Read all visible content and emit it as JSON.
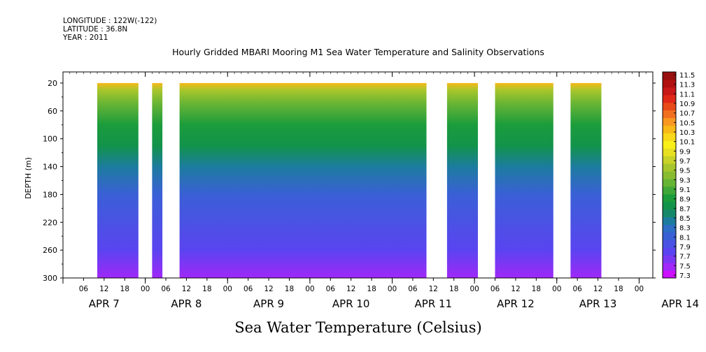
{
  "header": {
    "longitude": "LONGITUDE : 122W(-122)",
    "latitude": "LATITUDE : 36.8N",
    "year": "YEAR : 2011"
  },
  "chart_data": {
    "type": "heatmap",
    "title": "Hourly Gridded MBARI Mooring M1 Sea Water Temperature and Salinity Observations",
    "xlabel": "",
    "ylabel": "DEPTH (m)",
    "colorbar_label": "Sea Water Temperature (Celsius)",
    "ylim": [
      300,
      0
    ],
    "y_ticks": [
      20,
      60,
      100,
      140,
      180,
      220,
      260,
      300
    ],
    "x_hour_ticks": [
      "06",
      "12",
      "18",
      "00",
      "06",
      "12",
      "18",
      "00",
      "06",
      "12",
      "18",
      "00",
      "06",
      "12",
      "18",
      "00",
      "06",
      "12",
      "18",
      "00",
      "06",
      "12",
      "18",
      "00",
      "06",
      "12",
      "18",
      "00"
    ],
    "x_hour_ticks_start_hour": 6,
    "x_hour_ticks_step": 6,
    "x_start": "APR 7 00:00",
    "x_end": "APR 14 04:00",
    "day_labels": [
      {
        "label": "APR  7",
        "day": 0
      },
      {
        "label": "APR  8",
        "day": 1
      },
      {
        "label": "APR  9",
        "day": 2
      },
      {
        "label": "APR 10",
        "day": 3
      },
      {
        "label": "APR 11",
        "day": 4
      },
      {
        "label": "APR 12",
        "day": 5
      },
      {
        "label": "APR 13",
        "day": 6
      },
      {
        "label": "APR 14",
        "day": 7
      }
    ],
    "data_segments_hours": [
      [
        10,
        22
      ],
      [
        26,
        29
      ],
      [
        34,
        106
      ],
      [
        112,
        121
      ],
      [
        126,
        143
      ],
      [
        148,
        157
      ]
    ],
    "data_depth_range": [
      20,
      300
    ],
    "depth_profile": [
      {
        "depth": 20,
        "temp": 10.3
      },
      {
        "depth": 30,
        "temp": 9.6
      },
      {
        "depth": 50,
        "temp": 9.2
      },
      {
        "depth": 80,
        "temp": 9.0
      },
      {
        "depth": 110,
        "temp": 8.75
      },
      {
        "depth": 140,
        "temp": 8.4
      },
      {
        "depth": 180,
        "temp": 8.1
      },
      {
        "depth": 220,
        "temp": 7.95
      },
      {
        "depth": 260,
        "temp": 7.8
      },
      {
        "depth": 300,
        "temp": 7.5
      }
    ],
    "colorbar_levels": [
      "7.3",
      "7.5",
      "7.7",
      "7.9",
      "8.1",
      "8.3",
      "8.5",
      "8.7",
      "8.9",
      "9.1",
      "9.3",
      "9.5",
      "9.7",
      "9.9",
      "10.1",
      "10.3",
      "10.5",
      "10.7",
      "10.9",
      "11.1",
      "11.3",
      "11.5"
    ],
    "colorbar_colors": [
      "#cc10ff",
      "#a028f8",
      "#7a38f4",
      "#5a44f0",
      "#4a52e4",
      "#3a60d6",
      "#2e6ec6",
      "#1c7c9e",
      "#16886a",
      "#12934a",
      "#1c9c3c",
      "#40a838",
      "#66b434",
      "#88bc30",
      "#a8c62c",
      "#c8d228",
      "#e6e020",
      "#f8f018",
      "#f8d818",
      "#f8b818",
      "#f89820",
      "#f07020",
      "#e84a18",
      "#e02818",
      "#c81818",
      "#b01010",
      "#981010"
    ],
    "grid": false
  }
}
